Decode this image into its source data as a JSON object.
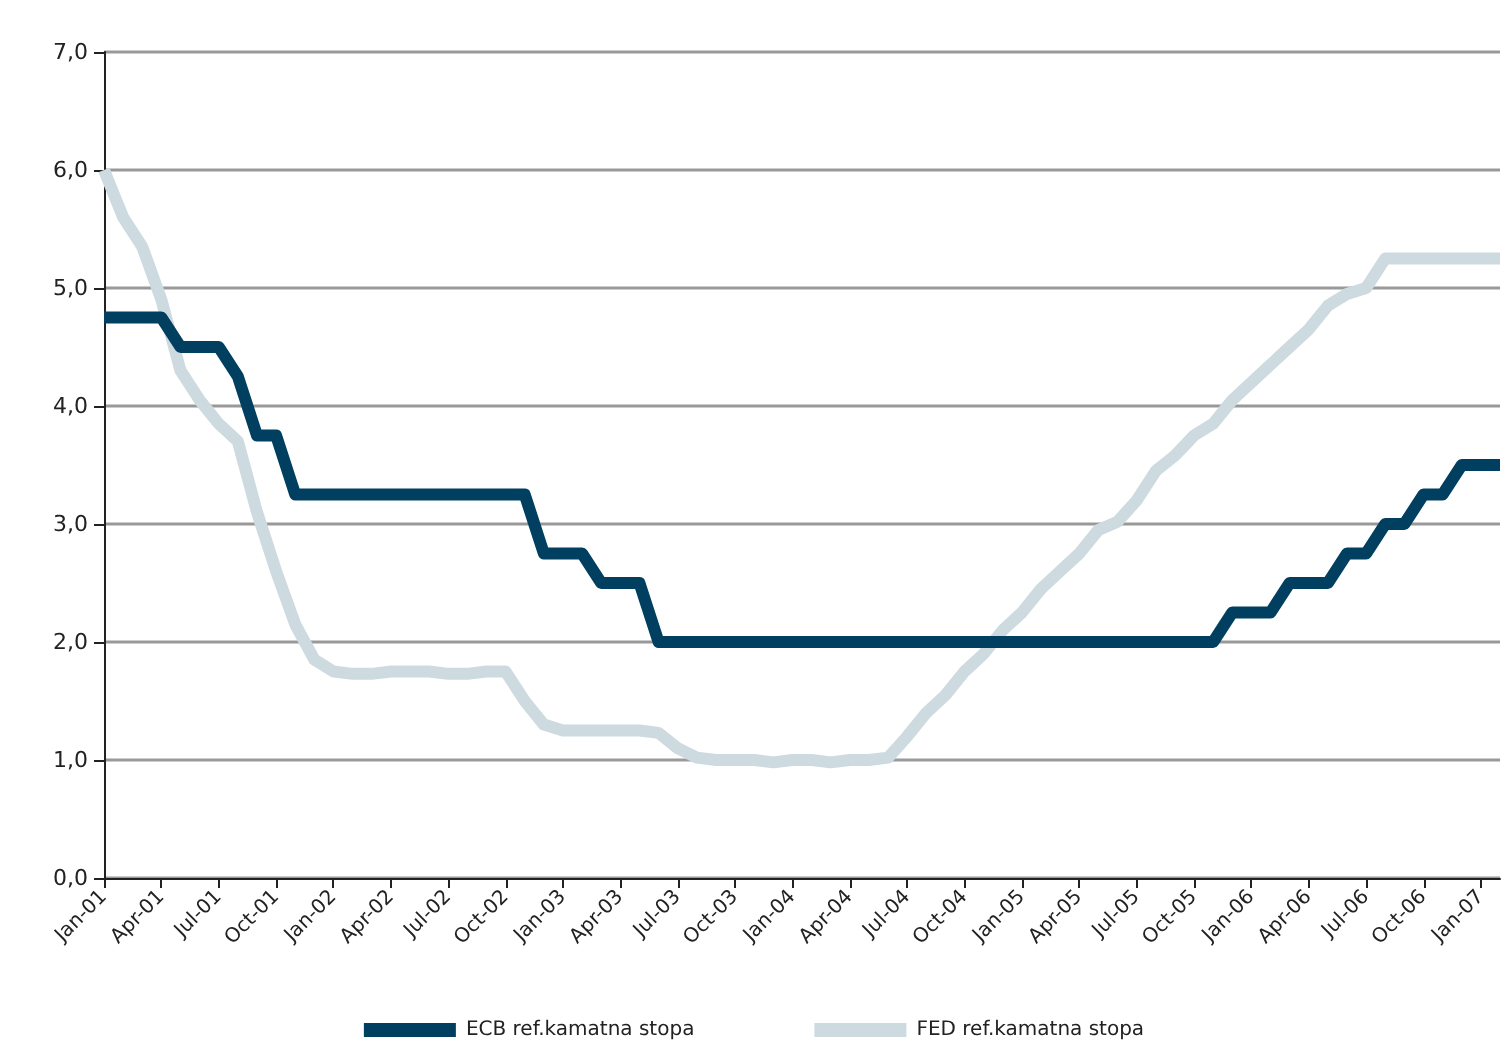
{
  "chart_data": {
    "type": "line",
    "categories": [
      "Jan-01",
      null,
      null,
      "Apr-01",
      null,
      null,
      "Jul-01",
      null,
      null,
      "Oct-01",
      null,
      null,
      "Jan-02",
      null,
      null,
      "Apr-02",
      null,
      null,
      "Jul-02",
      null,
      null,
      "Oct-02",
      null,
      null,
      "Jan-03",
      null,
      null,
      "Apr-03",
      null,
      null,
      "Jul-03",
      null,
      null,
      "Oct-03",
      null,
      null,
      "Jan-04",
      null,
      null,
      "Apr-04",
      null,
      null,
      "Jul-04",
      null,
      null,
      "Oct-04",
      null,
      null,
      "Jan-05",
      null,
      null,
      "Apr-05",
      null,
      null,
      "Jul-05",
      null,
      null,
      "Oct-05",
      null,
      null,
      "Jan-06",
      null,
      null,
      "Apr-06",
      null,
      null,
      "Jul-06",
      null,
      null,
      "Oct-06",
      null,
      null,
      "Jan-07",
      null
    ],
    "series": [
      {
        "name": "ECB ref.kamatna stopa",
        "color": "#003f5f",
        "values": [
          4.75,
          4.75,
          4.75,
          4.75,
          4.5,
          4.5,
          4.5,
          4.25,
          3.75,
          3.75,
          3.25,
          3.25,
          3.25,
          3.25,
          3.25,
          3.25,
          3.25,
          3.25,
          3.25,
          3.25,
          3.25,
          3.25,
          3.25,
          2.75,
          2.75,
          2.75,
          2.5,
          2.5,
          2.5,
          2.0,
          2.0,
          2.0,
          2.0,
          2.0,
          2.0,
          2.0,
          2.0,
          2.0,
          2.0,
          2.0,
          2.0,
          2.0,
          2.0,
          2.0,
          2.0,
          2.0,
          2.0,
          2.0,
          2.0,
          2.0,
          2.0,
          2.0,
          2.0,
          2.0,
          2.0,
          2.0,
          2.0,
          2.0,
          2.0,
          2.25,
          2.25,
          2.25,
          2.5,
          2.5,
          2.5,
          2.75,
          2.75,
          3.0,
          3.0,
          3.25,
          3.25,
          3.5,
          3.5,
          3.5
        ]
      },
      {
        "name": "FED ref.kamatna stopa",
        "color": "#cddbe1",
        "values": [
          6.0,
          5.6,
          5.35,
          4.9,
          4.3,
          4.05,
          3.85,
          3.7,
          3.1,
          2.6,
          2.15,
          1.85,
          1.75,
          1.73,
          1.73,
          1.75,
          1.75,
          1.75,
          1.73,
          1.73,
          1.75,
          1.75,
          1.5,
          1.3,
          1.25,
          1.25,
          1.25,
          1.25,
          1.25,
          1.23,
          1.1,
          1.02,
          1.0,
          1.0,
          1.0,
          0.98,
          1.0,
          1.0,
          0.98,
          1.0,
          1.0,
          1.02,
          1.2,
          1.4,
          1.55,
          1.75,
          1.9,
          2.1,
          2.25,
          2.45,
          2.6,
          2.75,
          2.95,
          3.02,
          3.2,
          3.45,
          3.58,
          3.75,
          3.85,
          4.05,
          4.2,
          4.35,
          4.5,
          4.65,
          4.85,
          4.95,
          5.0,
          5.25,
          5.25,
          5.25,
          5.25,
          5.25,
          5.25,
          5.25
        ]
      }
    ],
    "ylim": [
      0,
      7
    ],
    "yticks": [
      {
        "value": 0,
        "label": "0,0"
      },
      {
        "value": 1,
        "label": "1,0"
      },
      {
        "value": 2,
        "label": "2,0"
      },
      {
        "value": 3,
        "label": "3,0"
      },
      {
        "value": 4,
        "label": "4,0"
      },
      {
        "value": 5,
        "label": "5,0"
      },
      {
        "value": 6,
        "label": "6,0"
      },
      {
        "value": 7,
        "label": "7,0"
      }
    ],
    "grid": "y",
    "legend": "bottom",
    "marker": "none",
    "line_style": "solid"
  }
}
